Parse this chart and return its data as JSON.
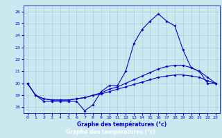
{
  "xlabel": "Graphe des températures (°c)",
  "background_color": "#cbe8f0",
  "line_color": "#0000cc",
  "grid_color": "#aaccdd",
  "xlim": [
    -0.5,
    23.5
  ],
  "ylim": [
    17.5,
    26.5
  ],
  "yticks": [
    18,
    19,
    20,
    21,
    22,
    23,
    24,
    25,
    26
  ],
  "xticks": [
    0,
    1,
    2,
    3,
    4,
    5,
    6,
    7,
    8,
    9,
    10,
    11,
    12,
    13,
    14,
    15,
    16,
    17,
    18,
    19,
    20,
    21,
    22,
    23
  ],
  "series": [
    {
      "x": [
        0,
        1,
        2,
        3,
        4,
        5,
        6,
        7,
        8,
        9,
        10,
        11,
        12,
        13,
        14,
        15,
        16,
        17,
        18,
        19,
        20,
        21,
        22,
        23
      ],
      "y": [
        20.0,
        19.0,
        18.5,
        18.5,
        18.5,
        18.5,
        18.5,
        17.7,
        18.2,
        19.3,
        19.8,
        19.8,
        21.0,
        23.3,
        24.5,
        25.2,
        25.8,
        25.2,
        24.8,
        22.8,
        21.3,
        21.0,
        20.0,
        20.0
      ]
    },
    {
      "x": [
        0,
        1,
        2,
        3,
        4,
        5,
        6,
        7,
        8,
        9,
        10,
        11,
        12,
        13,
        14,
        15,
        16,
        17,
        18,
        19,
        20,
        21,
        22,
        23
      ],
      "y": [
        20.0,
        19.0,
        18.7,
        18.6,
        18.6,
        18.6,
        18.7,
        18.8,
        19.0,
        19.2,
        19.5,
        19.7,
        20.0,
        20.3,
        20.6,
        20.9,
        21.2,
        21.4,
        21.5,
        21.5,
        21.3,
        21.0,
        20.5,
        20.0
      ]
    },
    {
      "x": [
        0,
        1,
        2,
        3,
        4,
        5,
        6,
        7,
        8,
        9,
        10,
        11,
        12,
        13,
        14,
        15,
        16,
        17,
        18,
        19,
        20,
        21,
        22,
        23
      ],
      "y": [
        20.0,
        19.0,
        18.7,
        18.6,
        18.6,
        18.6,
        18.7,
        18.8,
        19.0,
        19.1,
        19.3,
        19.5,
        19.7,
        19.9,
        20.1,
        20.3,
        20.5,
        20.6,
        20.7,
        20.7,
        20.6,
        20.5,
        20.2,
        20.0
      ]
    }
  ]
}
